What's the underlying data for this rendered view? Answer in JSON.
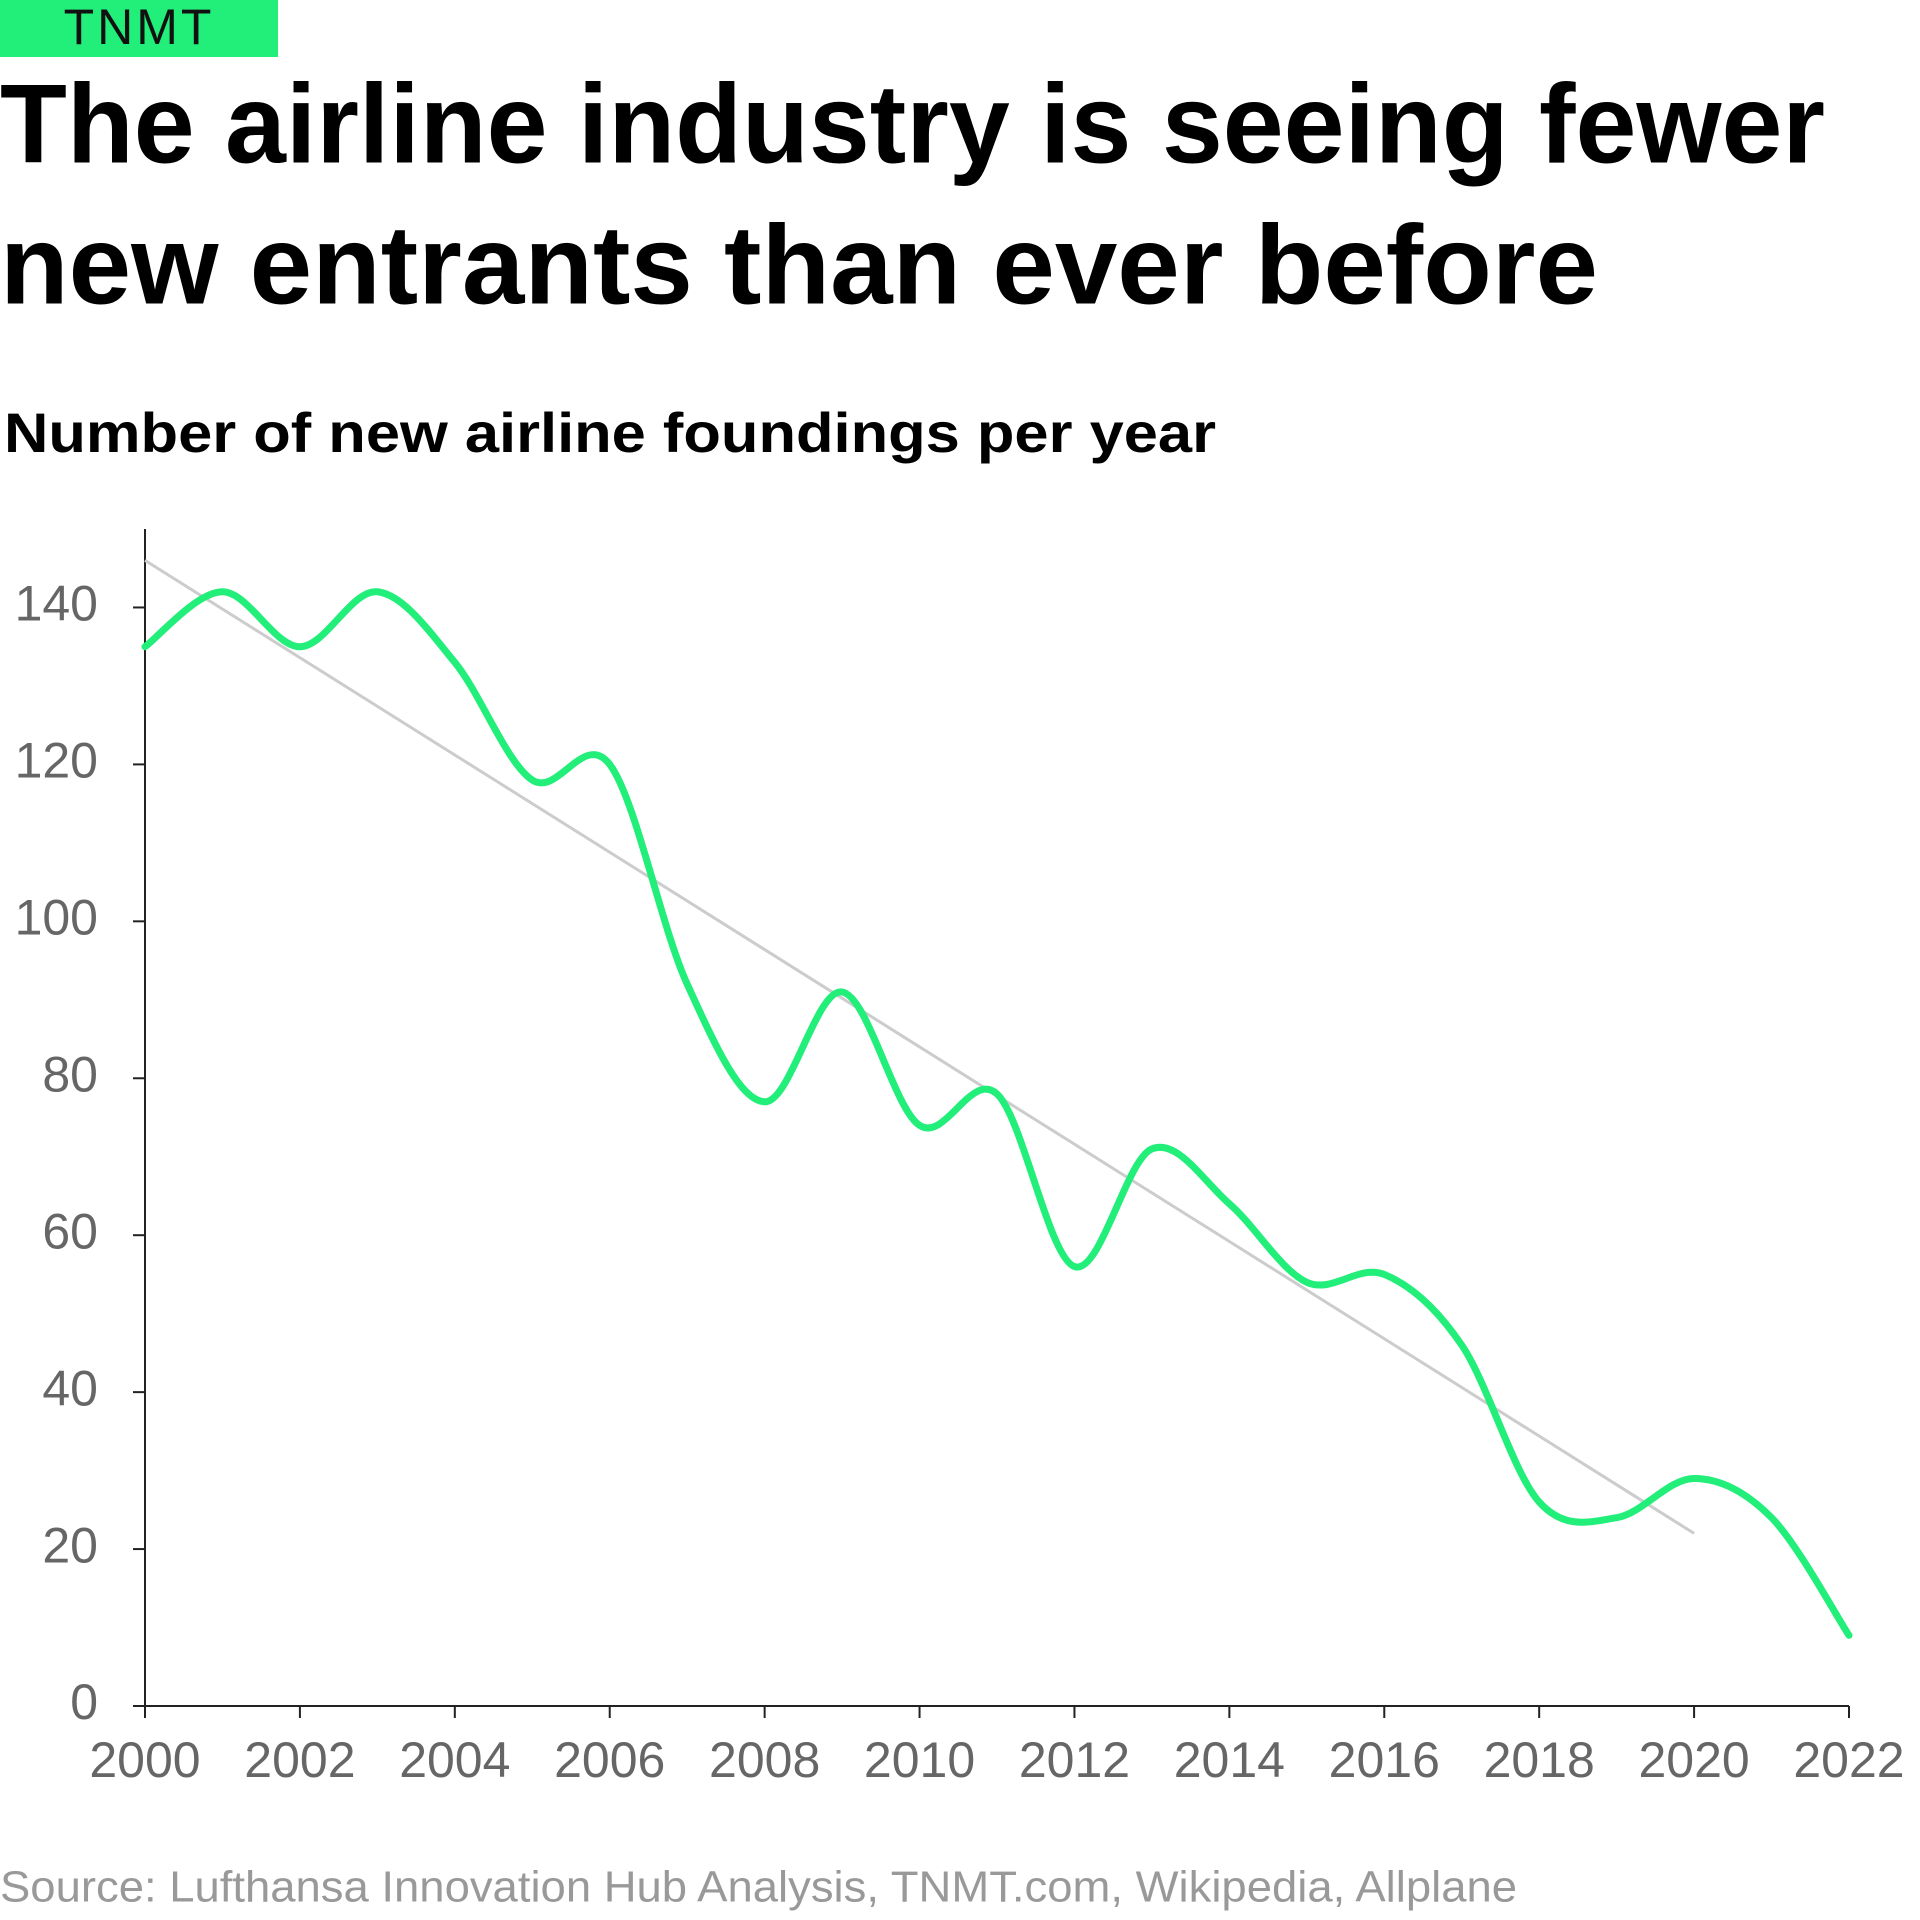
{
  "brand": "TNMT",
  "chart_data": {
    "type": "line",
    "title": [
      "The airline industry is seeing fewer",
      "new entrants than ever before"
    ],
    "subtitle": "Number of new airline foundings per year",
    "source": "Source: Lufthansa Innovation Hub Analysis, TNMT.com, Wikipedia, Allplane",
    "x": [
      2000,
      2001,
      2002,
      2003,
      2004,
      2005,
      2006,
      2007,
      2008,
      2009,
      2010,
      2011,
      2012,
      2013,
      2014,
      2015,
      2016,
      2017,
      2018,
      2019,
      2020,
      2021,
      2022
    ],
    "series": [
      {
        "color": "#22ee7a",
        "values": [
          135,
          142,
          135,
          142,
          133,
          118,
          120,
          92,
          77,
          91,
          74,
          78,
          56,
          71,
          64,
          54,
          55,
          46,
          26,
          24,
          29,
          24,
          9
        ]
      }
    ],
    "trend": {
      "color": "#cccccc",
      "x": [
        2000,
        2020
      ],
      "values": [
        146,
        22
      ]
    },
    "xlim": [
      2000,
      2022
    ],
    "xticks": [
      2000,
      2002,
      2004,
      2006,
      2008,
      2010,
      2012,
      2014,
      2016,
      2018,
      2020,
      2022
    ],
    "ylim": [
      0,
      150
    ],
    "yticks": [
      0,
      20,
      40,
      60,
      80,
      100,
      120,
      140
    ],
    "grid": false
  }
}
